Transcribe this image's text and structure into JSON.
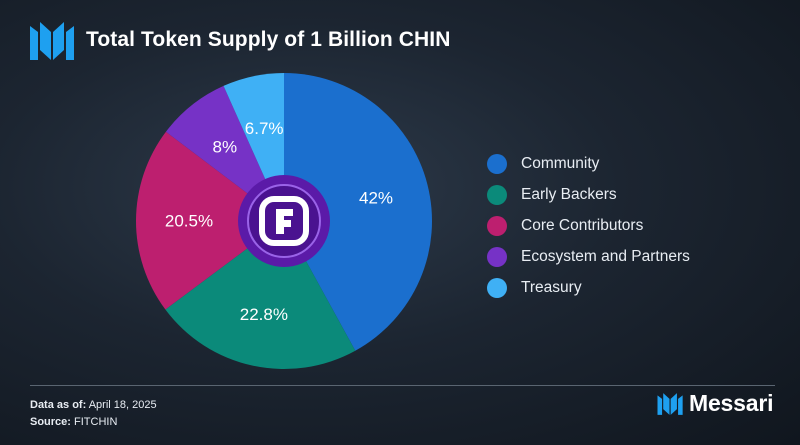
{
  "header": {
    "title": "Total Token Supply of 1 Billion CHIN"
  },
  "chart_data": {
    "type": "pie",
    "title": "Total Token Supply of 1 Billion CHIN",
    "categories": [
      "Community",
      "Early Backers",
      "Core Contributors",
      "Ecosystem and Partners",
      "Treasury"
    ],
    "values": [
      42,
      22.8,
      20.5,
      8,
      6.7
    ],
    "labels": [
      "42%",
      "22.8%",
      "20.5%",
      "8%",
      "6.7%"
    ],
    "colors": [
      "#1b6fce",
      "#0b8a7a",
      "#bd1f6f",
      "#7632c6",
      "#3fb0f5"
    ],
    "center_icon": "fitchin-logo-icon",
    "legend_position": "right"
  },
  "footer": {
    "data_as_of_label": "Data as of:",
    "data_as_of_value": "April 18, 2025",
    "source_label": "Source:",
    "source_value": "FITCHIN"
  },
  "brand": {
    "name": "Messari",
    "logo_icon": "messari-logo-icon"
  }
}
